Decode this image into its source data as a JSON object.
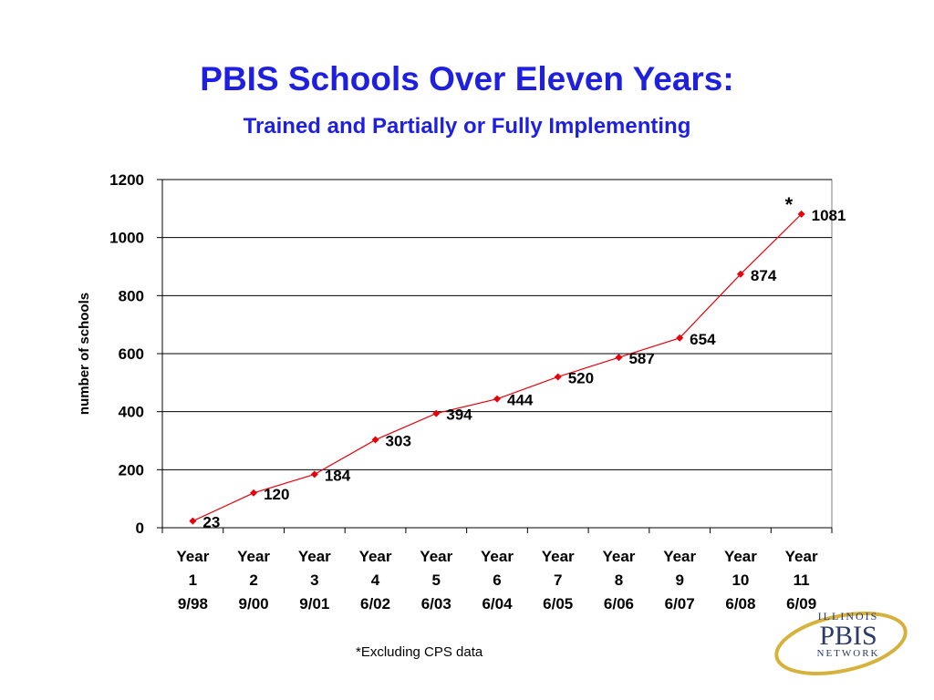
{
  "title": "PBIS Schools Over Eleven Years:",
  "subtitle": "Trained and Partially or Fully Implementing",
  "footnote": "*Excluding CPS data",
  "logo": {
    "line1": "ILLINOIS",
    "line2": "PBIS",
    "line3": "NETWORK"
  },
  "colors": {
    "title": "#1f1fe0",
    "series": "#e8000b",
    "logo_gold": "#d6b23c",
    "logo_navy": "#2b3a67"
  },
  "chart_data": {
    "type": "line",
    "ylabel": "number of schools",
    "xlabel": "",
    "ylim": [
      0,
      1200
    ],
    "yticks": [
      0,
      200,
      400,
      600,
      800,
      1000,
      1200
    ],
    "grid": true,
    "categories": [
      [
        "Year",
        "1",
        "9/98"
      ],
      [
        "Year",
        "2",
        "9/00"
      ],
      [
        "Year",
        "3",
        "9/01"
      ],
      [
        "Year",
        "4",
        "6/02"
      ],
      [
        "Year",
        "5",
        "6/03"
      ],
      [
        "Year",
        "6",
        "6/04"
      ],
      [
        "Year",
        "7",
        "6/05"
      ],
      [
        "Year",
        "8",
        "6/06"
      ],
      [
        "Year",
        "9",
        "6/07"
      ],
      [
        "Year",
        "10",
        "6/08"
      ],
      [
        "Year",
        "11",
        "6/09"
      ]
    ],
    "series": [
      {
        "values": [
          23,
          120,
          184,
          303,
          394,
          444,
          520,
          587,
          654,
          874,
          1081
        ]
      }
    ],
    "annotations": [
      {
        "index": 10,
        "text": "*"
      }
    ]
  }
}
